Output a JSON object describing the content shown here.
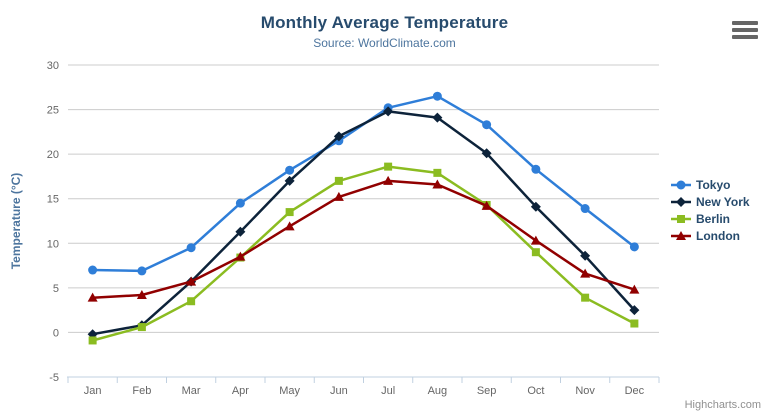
{
  "chart_data": {
    "type": "line",
    "title": "Monthly Average Temperature",
    "subtitle": "Source: WorldClimate.com",
    "categories": [
      "Jan",
      "Feb",
      "Mar",
      "Apr",
      "May",
      "Jun",
      "Jul",
      "Aug",
      "Sep",
      "Oct",
      "Nov",
      "Dec"
    ],
    "xlabel": "",
    "ylabel": "Temperature (°C)",
    "yAxis": {
      "title": "Temperature (°C)",
      "min": -5,
      "max": 30,
      "ticks": [
        -5,
        0,
        5,
        10,
        15,
        20,
        25,
        30
      ]
    },
    "grid": true,
    "legend_position": "right",
    "series": [
      {
        "name": "Tokyo",
        "color": "#2f7ed8",
        "marker": "circle",
        "values": [
          7.0,
          6.9,
          9.5,
          14.5,
          18.2,
          21.5,
          25.2,
          26.5,
          23.3,
          18.3,
          13.9,
          9.6
        ]
      },
      {
        "name": "New York",
        "color": "#0d233a",
        "marker": "diamond",
        "values": [
          -0.2,
          0.8,
          5.7,
          11.3,
          17.0,
          22.0,
          24.8,
          24.1,
          20.1,
          14.1,
          8.6,
          2.5
        ]
      },
      {
        "name": "Berlin",
        "color": "#8bbc21",
        "marker": "square",
        "values": [
          -0.9,
          0.6,
          3.5,
          8.4,
          13.5,
          17.0,
          18.6,
          17.9,
          14.3,
          9.0,
          3.9,
          1.0
        ]
      },
      {
        "name": "London",
        "color": "#910000",
        "marker": "triangle",
        "values": [
          3.9,
          4.2,
          5.7,
          8.5,
          11.9,
          15.2,
          17.0,
          16.6,
          14.2,
          10.3,
          6.6,
          4.8
        ]
      }
    ],
    "colors": {
      "title": "#274b6d",
      "subtitle": "#4d759e",
      "axis_label": "#666666",
      "axis_title": "#4d759e",
      "grid_line": "#cccccc",
      "axis_line": "#c0d0e0",
      "legend_text": "#274b6d",
      "credits_text": "#909090",
      "menu_icon": "#666666"
    }
  },
  "toolbar": {
    "export_menu_icon": "hamburger-icon"
  },
  "credits": {
    "label": "Highcharts.com"
  }
}
